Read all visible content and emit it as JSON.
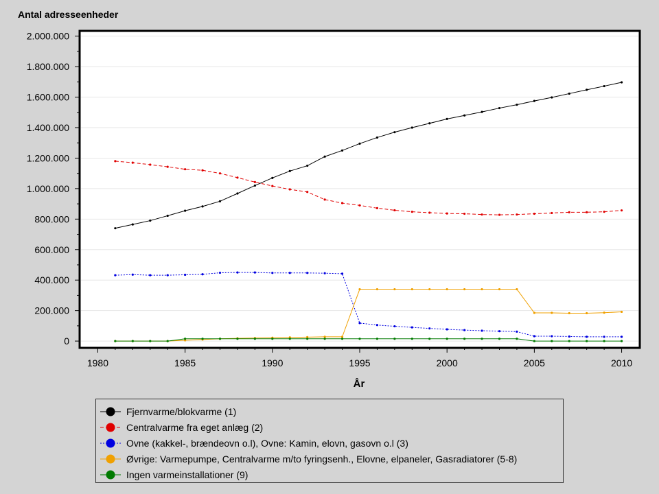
{
  "chart_data": {
    "type": "line",
    "title": "",
    "ylabel": "Antal adresseenheder",
    "xlabel": "År",
    "xlim": [
      1979,
      2011
    ],
    "ylim": [
      -40000,
      2030000
    ],
    "x_ticks": [
      1980,
      1985,
      1990,
      1995,
      2000,
      2005,
      2010
    ],
    "y_ticks": [
      {
        "value": 0,
        "label": "0"
      },
      {
        "value": 200000,
        "label": "200.000"
      },
      {
        "value": 400000,
        "label": "400.000"
      },
      {
        "value": 600000,
        "label": "600.000"
      },
      {
        "value": 800000,
        "label": "800.000"
      },
      {
        "value": 1000000,
        "label": "1.000.000"
      },
      {
        "value": 1200000,
        "label": "1.200.000"
      },
      {
        "value": 1400000,
        "label": "1.400.000"
      },
      {
        "value": 1600000,
        "label": "1.600.000"
      },
      {
        "value": 1800000,
        "label": "1.800.000"
      },
      {
        "value": 2000000,
        "label": "2.000.000"
      }
    ],
    "grid": "horizontal",
    "legend_placement": "bottom",
    "x": [
      1981,
      1982,
      1983,
      1984,
      1985,
      1986,
      1987,
      1988,
      1989,
      1990,
      1991,
      1992,
      1993,
      1994,
      1995,
      1996,
      1997,
      1998,
      1999,
      2000,
      2001,
      2002,
      2003,
      2004,
      2005,
      2006,
      2007,
      2008,
      2009,
      2010
    ],
    "series": [
      {
        "name": "Fjernvarme/blokvarme (1)",
        "color": "#000000",
        "dash": "",
        "values": [
          740000,
          765000,
          790000,
          822000,
          855000,
          883000,
          917000,
          968000,
          1020000,
          1070000,
          1115000,
          1150000,
          1210000,
          1250000,
          1295000,
          1335000,
          1370000,
          1400000,
          1428000,
          1457000,
          1480000,
          1503000,
          1528000,
          1550000,
          1575000,
          1598000,
          1623000,
          1648000,
          1672000,
          1697000
        ]
      },
      {
        "name": "Centralvarme fra eget anlæg (2)",
        "color": "#e00000",
        "dash": "5,3",
        "values": [
          1180000,
          1170000,
          1157000,
          1143000,
          1127000,
          1120000,
          1100000,
          1072000,
          1043000,
          1017000,
          995000,
          978000,
          928000,
          905000,
          890000,
          872000,
          858000,
          848000,
          842000,
          837000,
          835000,
          830000,
          828000,
          830000,
          835000,
          840000,
          845000,
          845000,
          848000,
          857000
        ]
      },
      {
        "name": "Ovne (kakkel-, brændeovn o.l), Ovne: Kamin, elovn, gasovn o.l (3)",
        "color": "#0000e0",
        "dash": "2,2",
        "values": [
          432000,
          436000,
          432000,
          432000,
          435000,
          438000,
          448000,
          450000,
          450000,
          447000,
          447000,
          447000,
          445000,
          442000,
          118000,
          105000,
          97000,
          90000,
          83000,
          77000,
          72000,
          68000,
          65000,
          62000,
          32000,
          32000,
          30000,
          28000,
          28000,
          28000
        ]
      },
      {
        "name": "Øvrige: Varmepumpe, Centralvarme m/to fyringsenh., Elovne, elpaneler, Gasradiatorer (5-8)",
        "color": "#f0a000",
        "dash": "",
        "values": [
          0,
          0,
          0,
          0,
          5000,
          10000,
          15000,
          18000,
          20000,
          22000,
          24000,
          26000,
          28000,
          28000,
          340000,
          340000,
          340000,
          340000,
          340000,
          340000,
          340000,
          340000,
          340000,
          340000,
          185000,
          185000,
          183000,
          183000,
          186000,
          192000
        ]
      },
      {
        "name": "Ingen varmeinstallationer (9)",
        "color": "#007a00",
        "dash": "",
        "values": [
          0,
          0,
          0,
          0,
          15000,
          15000,
          15000,
          15000,
          15000,
          15000,
          15000,
          15000,
          15000,
          15000,
          15000,
          15000,
          15000,
          15000,
          15000,
          15000,
          15000,
          15000,
          15000,
          15000,
          0,
          0,
          0,
          0,
          0,
          0
        ]
      }
    ]
  }
}
